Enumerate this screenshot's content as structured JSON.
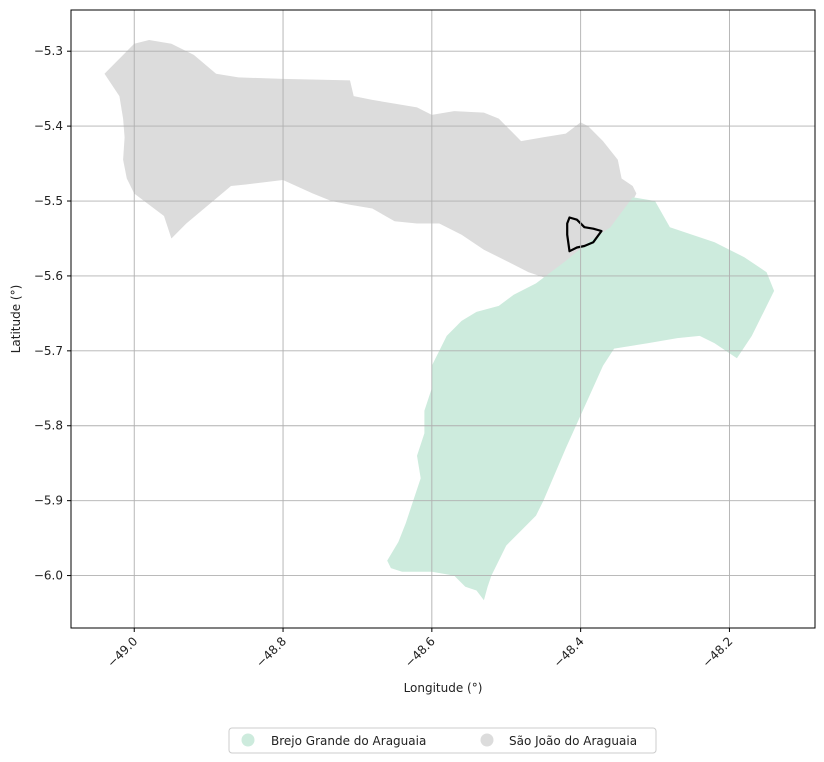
{
  "chart_data": {
    "type": "map",
    "xlabel": "Longitude (°)",
    "ylabel": "Latitude (°)",
    "xlim": [
      -49.085,
      -48.085
    ],
    "ylim": [
      -6.07,
      -5.245
    ],
    "grid": true,
    "x_ticks": [
      {
        "value": -49.0,
        "label": "−49.0"
      },
      {
        "value": -48.8,
        "label": "−48.8"
      },
      {
        "value": -48.6,
        "label": "−48.6"
      },
      {
        "value": -48.4,
        "label": "−48.4"
      },
      {
        "value": -48.2,
        "label": "−48.2"
      }
    ],
    "y_ticks": [
      {
        "value": -5.3,
        "label": "−5.3"
      },
      {
        "value": -5.4,
        "label": "−5.4"
      },
      {
        "value": -5.5,
        "label": "−5.5"
      },
      {
        "value": -5.6,
        "label": "−5.6"
      },
      {
        "value": -5.7,
        "label": "−5.7"
      },
      {
        "value": -5.8,
        "label": "−5.8"
      },
      {
        "value": -5.9,
        "label": "−5.9"
      },
      {
        "value": -6.0,
        "label": "−6.0"
      }
    ],
    "legend_position": "bottom-center",
    "regions": [
      {
        "name": "São João do Araguaia",
        "color": "#dcdcdc",
        "polygon": [
          [
            -49.04,
            -5.33
          ],
          [
            -49.03,
            -5.32
          ],
          [
            -49.01,
            -5.3
          ],
          [
            -49.0,
            -5.29
          ],
          [
            -48.98,
            -5.285
          ],
          [
            -48.95,
            -5.29
          ],
          [
            -48.92,
            -5.305
          ],
          [
            -48.89,
            -5.33
          ],
          [
            -48.86,
            -5.335
          ],
          [
            -48.8,
            -5.337
          ],
          [
            -48.71,
            -5.339
          ],
          [
            -48.705,
            -5.36
          ],
          [
            -48.68,
            -5.365
          ],
          [
            -48.65,
            -5.37
          ],
          [
            -48.62,
            -5.375
          ],
          [
            -48.6,
            -5.385
          ],
          [
            -48.57,
            -5.38
          ],
          [
            -48.53,
            -5.382
          ],
          [
            -48.51,
            -5.39
          ],
          [
            -48.5,
            -5.4
          ],
          [
            -48.49,
            -5.41
          ],
          [
            -48.48,
            -5.42
          ],
          [
            -48.45,
            -5.415
          ],
          [
            -48.42,
            -5.41
          ],
          [
            -48.4,
            -5.395
          ],
          [
            -48.39,
            -5.4
          ],
          [
            -48.37,
            -5.42
          ],
          [
            -48.35,
            -5.445
          ],
          [
            -48.345,
            -5.47
          ],
          [
            -48.33,
            -5.48
          ],
          [
            -48.325,
            -5.49
          ],
          [
            -48.33,
            -5.5
          ],
          [
            -48.35,
            -5.53
          ],
          [
            -48.38,
            -5.55
          ],
          [
            -48.41,
            -5.58
          ],
          [
            -48.44,
            -5.605
          ],
          [
            -48.47,
            -5.595
          ],
          [
            -48.5,
            -5.58
          ],
          [
            -48.53,
            -5.565
          ],
          [
            -48.56,
            -5.545
          ],
          [
            -48.59,
            -5.53
          ],
          [
            -48.62,
            -5.53
          ],
          [
            -48.65,
            -5.527
          ],
          [
            -48.68,
            -5.51
          ],
          [
            -48.71,
            -5.505
          ],
          [
            -48.735,
            -5.5
          ],
          [
            -48.76,
            -5.49
          ],
          [
            -48.8,
            -5.472
          ],
          [
            -48.85,
            -5.478
          ],
          [
            -48.87,
            -5.48
          ],
          [
            -48.93,
            -5.53
          ],
          [
            -48.95,
            -5.55
          ],
          [
            -48.955,
            -5.535
          ],
          [
            -48.96,
            -5.52
          ],
          [
            -48.98,
            -5.505
          ],
          [
            -49.0,
            -5.49
          ],
          [
            -49.01,
            -5.47
          ],
          [
            -49.015,
            -5.445
          ],
          [
            -49.013,
            -5.415
          ],
          [
            -49.015,
            -5.39
          ],
          [
            -49.02,
            -5.36
          ],
          [
            -49.03,
            -5.345
          ]
        ]
      },
      {
        "name": "Brejo Grande do Araguaia",
        "color": "#cdebdd",
        "polygon": [
          [
            -48.3,
            -5.5
          ],
          [
            -48.33,
            -5.495
          ],
          [
            -48.36,
            -5.535
          ],
          [
            -48.39,
            -5.555
          ],
          [
            -48.42,
            -5.58
          ],
          [
            -48.46,
            -5.61
          ],
          [
            -48.49,
            -5.625
          ],
          [
            -48.51,
            -5.64
          ],
          [
            -48.54,
            -5.648
          ],
          [
            -48.56,
            -5.66
          ],
          [
            -48.58,
            -5.68
          ],
          [
            -48.59,
            -5.7
          ],
          [
            -48.6,
            -5.72
          ],
          [
            -48.6,
            -5.75
          ],
          [
            -48.61,
            -5.78
          ],
          [
            -48.61,
            -5.81
          ],
          [
            -48.62,
            -5.84
          ],
          [
            -48.615,
            -5.87
          ],
          [
            -48.625,
            -5.9
          ],
          [
            -48.635,
            -5.93
          ],
          [
            -48.645,
            -5.955
          ],
          [
            -48.66,
            -5.98
          ],
          [
            -48.655,
            -5.99
          ],
          [
            -48.64,
            -5.995
          ],
          [
            -48.6,
            -5.995
          ],
          [
            -48.57,
            -6.0
          ],
          [
            -48.555,
            -6.015
          ],
          [
            -48.54,
            -6.02
          ],
          [
            -48.53,
            -6.033
          ],
          [
            -48.525,
            -6.015
          ],
          [
            -48.52,
            -6.0
          ],
          [
            -48.51,
            -5.98
          ],
          [
            -48.5,
            -5.96
          ],
          [
            -48.48,
            -5.94
          ],
          [
            -48.46,
            -5.92
          ],
          [
            -48.45,
            -5.9
          ],
          [
            -48.42,
            -5.83
          ],
          [
            -48.37,
            -5.72
          ],
          [
            -48.355,
            -5.697
          ],
          [
            -48.31,
            -5.69
          ],
          [
            -48.27,
            -5.683
          ],
          [
            -48.24,
            -5.68
          ],
          [
            -48.22,
            -5.69
          ],
          [
            -48.19,
            -5.71
          ],
          [
            -48.17,
            -5.68
          ],
          [
            -48.14,
            -5.62
          ],
          [
            -48.15,
            -5.595
          ],
          [
            -48.18,
            -5.575
          ],
          [
            -48.2,
            -5.565
          ],
          [
            -48.22,
            -5.555
          ],
          [
            -48.25,
            -5.545
          ],
          [
            -48.28,
            -5.535
          ]
        ]
      }
    ],
    "outline": {
      "polygon": [
        [
          -48.415,
          -5.522
        ],
        [
          -48.405,
          -5.525
        ],
        [
          -48.395,
          -5.535
        ],
        [
          -48.383,
          -5.537
        ],
        [
          -48.372,
          -5.54
        ],
        [
          -48.383,
          -5.555
        ],
        [
          -48.395,
          -5.56
        ],
        [
          -48.405,
          -5.562
        ],
        [
          -48.415,
          -5.567
        ],
        [
          -48.418,
          -5.545
        ],
        [
          -48.418,
          -5.53
        ]
      ],
      "color": "#000000"
    }
  }
}
